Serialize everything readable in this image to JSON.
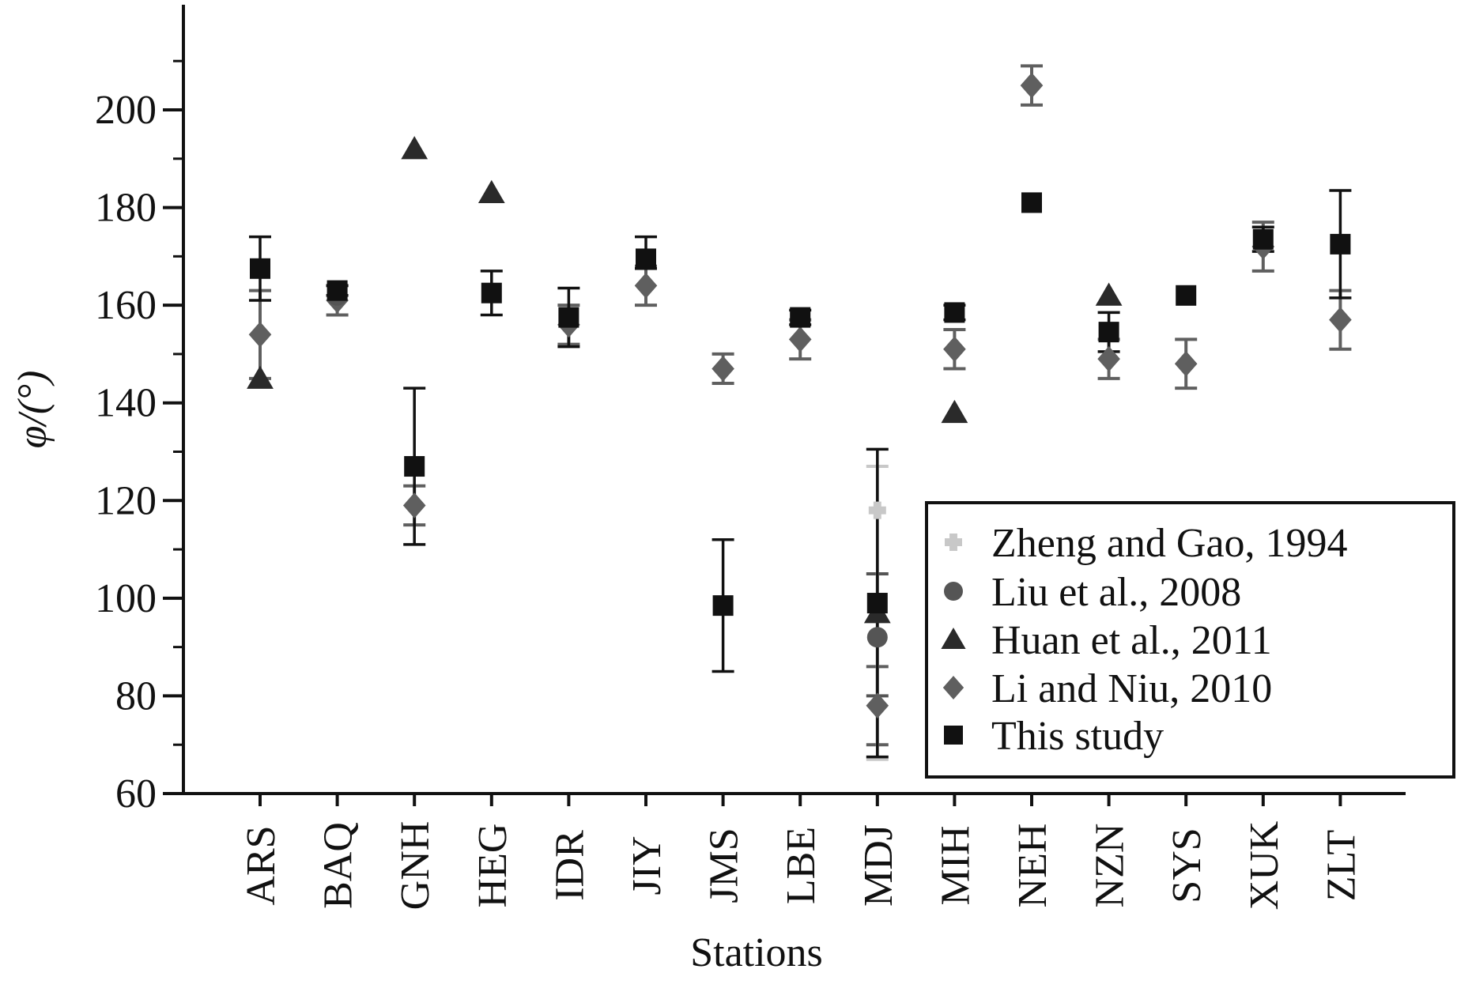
{
  "chart_data": {
    "type": "scatter",
    "xlabel": "Stations",
    "ylabel": "φ/(°)",
    "ylim": [
      60,
      220
    ],
    "yticks": [
      60,
      80,
      100,
      120,
      140,
      160,
      180,
      200
    ],
    "yticks_labels": [
      "60",
      "80",
      "100",
      "120",
      "140",
      "160",
      "180",
      "200"
    ],
    "categories": [
      "ARS",
      "BAQ",
      "GNH",
      "HEG",
      "IDR",
      "JIY",
      "JMS",
      "LBE",
      "MDJ",
      "MIH",
      "NEH",
      "NZN",
      "SYS",
      "XUK",
      "ZLT"
    ],
    "grid": false,
    "legend_position": "bottom-right",
    "series": [
      {
        "name": "Zheng and Gao, 1994",
        "marker": "cross",
        "color": "#c8c8c8",
        "points": [
          {
            "x": "MDJ",
            "y": 118,
            "err_low": 67,
            "err_high": 127
          }
        ]
      },
      {
        "name": "Liu et al., 2008",
        "marker": "circle",
        "color": "#555555",
        "points": [
          {
            "x": "BAQ",
            "y": 162
          },
          {
            "x": "MDJ",
            "y": 92,
            "err_low": 80,
            "err_high": 105
          }
        ]
      },
      {
        "name": "Huan et al., 2011",
        "marker": "triangle",
        "color": "#2a2a2a",
        "points": [
          {
            "x": "ARS",
            "y": 145
          },
          {
            "x": "GNH",
            "y": 192
          },
          {
            "x": "HEG",
            "y": 183
          },
          {
            "x": "MDJ",
            "y": 97
          },
          {
            "x": "MIH",
            "y": 138
          },
          {
            "x": "NZN",
            "y": 162
          }
        ]
      },
      {
        "name": "Li and Niu, 2010",
        "marker": "diamond",
        "color": "#5f5f5f",
        "points": [
          {
            "x": "ARS",
            "y": 154,
            "err_low": 145,
            "err_high": 163
          },
          {
            "x": "BAQ",
            "y": 161,
            "err_low": 158,
            "err_high": 164
          },
          {
            "x": "GNH",
            "y": 119,
            "err_low": 115,
            "err_high": 123
          },
          {
            "x": "IDR",
            "y": 156,
            "err_low": 152,
            "err_high": 160
          },
          {
            "x": "JIY",
            "y": 164,
            "err_low": 160,
            "err_high": 168
          },
          {
            "x": "JMS",
            "y": 147,
            "err_low": 144,
            "err_high": 150
          },
          {
            "x": "LBE",
            "y": 153,
            "err_low": 149,
            "err_high": 157
          },
          {
            "x": "MDJ",
            "y": 78,
            "err_low": 70,
            "err_high": 86
          },
          {
            "x": "MIH",
            "y": 151,
            "err_low": 147,
            "err_high": 155
          },
          {
            "x": "NEH",
            "y": 205,
            "err_low": 201,
            "err_high": 209
          },
          {
            "x": "NZN",
            "y": 149,
            "err_low": 145,
            "err_high": 153
          },
          {
            "x": "SYS",
            "y": 148,
            "err_low": 143,
            "err_high": 153
          },
          {
            "x": "XUK",
            "y": 172,
            "err_low": 167,
            "err_high": 177
          },
          {
            "x": "ZLT",
            "y": 157,
            "err_low": 151,
            "err_high": 163
          }
        ]
      },
      {
        "name": "This study",
        "marker": "square",
        "color": "#111111",
        "points": [
          {
            "x": "ARS",
            "y": 167.5,
            "err_low": 161,
            "err_high": 174
          },
          {
            "x": "BAQ",
            "y": 163,
            "err_low": 162,
            "err_high": 164
          },
          {
            "x": "GNH",
            "y": 127,
            "err_low": 111,
            "err_high": 143
          },
          {
            "x": "HEG",
            "y": 162.5,
            "err_low": 158,
            "err_high": 167
          },
          {
            "x": "IDR",
            "y": 157.5,
            "err_low": 151.5,
            "err_high": 163.5
          },
          {
            "x": "JIY",
            "y": 169.5,
            "err_low": 167.5,
            "err_high": 174
          },
          {
            "x": "JMS",
            "y": 98.5,
            "err_low": 85,
            "err_high": 112
          },
          {
            "x": "LBE",
            "y": 157.5,
            "err_low": 156,
            "err_high": 159
          },
          {
            "x": "MDJ",
            "y": 99,
            "err_low": 67.5,
            "err_high": 130.5
          },
          {
            "x": "MIH",
            "y": 158.5,
            "err_low": 157,
            "err_high": 160
          },
          {
            "x": "NEH",
            "y": 181
          },
          {
            "x": "NZN",
            "y": 154.5,
            "err_low": 150.5,
            "err_high": 158.5
          },
          {
            "x": "SYS",
            "y": 162
          },
          {
            "x": "XUK",
            "y": 173.5,
            "err_low": 171,
            "err_high": 176
          },
          {
            "x": "ZLT",
            "y": 172.5,
            "err_low": 161.5,
            "err_high": 183.5
          }
        ]
      }
    ]
  }
}
